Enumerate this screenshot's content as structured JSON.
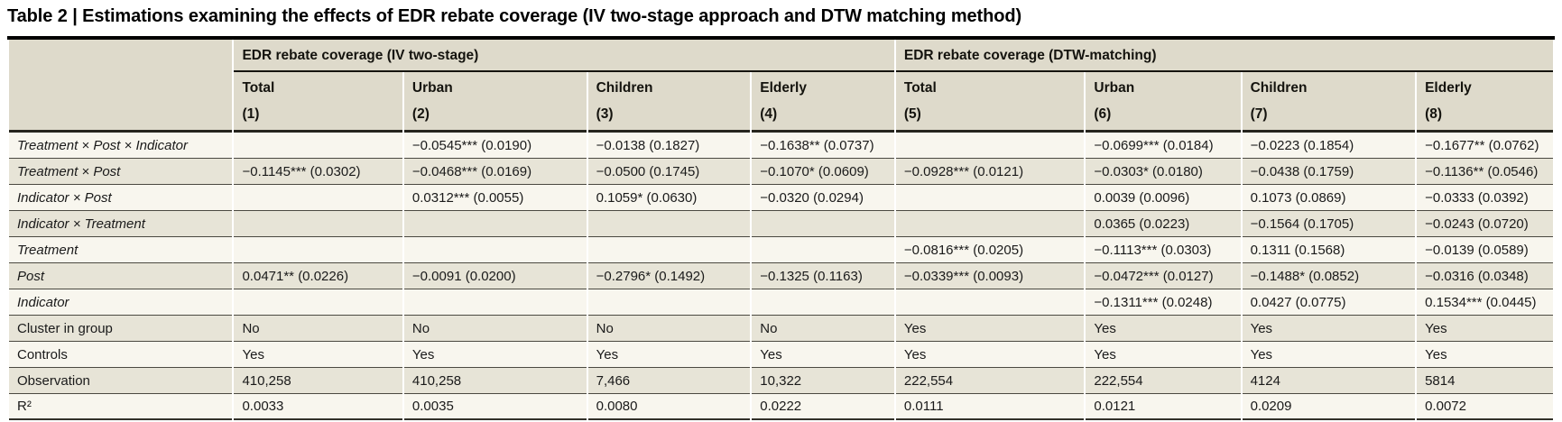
{
  "title": "Table 2 | Estimations examining the effects of EDR rebate coverage (IV two-stage approach and DTW matching method)",
  "palette": {
    "header_bg": "#dedacb",
    "row_light_bg": "#f8f6ee",
    "row_dark_bg": "#e7e4d7",
    "rule_dark": "#000000",
    "rule_row": "#4b4941"
  },
  "table": {
    "groups": [
      {
        "label": "EDR rebate coverage (IV two-stage)",
        "span": 4
      },
      {
        "label": "EDR rebate coverage (DTW-matching)",
        "span": 4
      }
    ],
    "columns": [
      {
        "name": "Total",
        "number": "(1)"
      },
      {
        "name": "Urban",
        "number": "(2)"
      },
      {
        "name": "Children",
        "number": "(3)"
      },
      {
        "name": "Elderly",
        "number": "(4)"
      },
      {
        "name": "Total",
        "number": "(5)"
      },
      {
        "name": "Urban",
        "number": "(6)"
      },
      {
        "name": "Children",
        "number": "(7)"
      },
      {
        "name": "Elderly",
        "number": "(8)"
      }
    ],
    "rows": [
      {
        "label": "Treatment × Post × Indicator",
        "italic": true,
        "values": [
          "",
          "−0.0545*** (0.0190)",
          "−0.0138 (0.1827)",
          "−0.1638** (0.0737)",
          "",
          "−0.0699*** (0.0184)",
          "−0.0223 (0.1854)",
          "−0.1677** (0.0762)"
        ]
      },
      {
        "label": "Treatment × Post",
        "italic": true,
        "values": [
          "−0.1145*** (0.0302)",
          "−0.0468*** (0.0169)",
          "−0.0500 (0.1745)",
          "−0.1070* (0.0609)",
          "−0.0928*** (0.0121)",
          "−0.0303* (0.0180)",
          "−0.0438 (0.1759)",
          "−0.1136** (0.0546)"
        ]
      },
      {
        "label": "Indicator × Post",
        "italic": true,
        "values": [
          "",
          "0.0312*** (0.0055)",
          "0.1059* (0.0630)",
          "−0.0320 (0.0294)",
          "",
          "0.0039 (0.0096)",
          "0.1073 (0.0869)",
          "−0.0333 (0.0392)"
        ]
      },
      {
        "label": "Indicator × Treatment",
        "italic": true,
        "values": [
          "",
          "",
          "",
          "",
          "",
          "0.0365 (0.0223)",
          "−0.1564 (0.1705)",
          "−0.0243 (0.0720)"
        ]
      },
      {
        "label": "Treatment",
        "italic": true,
        "values": [
          "",
          "",
          "",
          "",
          "−0.0816*** (0.0205)",
          "−0.1113*** (0.0303)",
          "0.1311 (0.1568)",
          "−0.0139 (0.0589)"
        ]
      },
      {
        "label": "Post",
        "italic": true,
        "values": [
          "0.0471** (0.0226)",
          "−0.0091 (0.0200)",
          "−0.2796* (0.1492)",
          "−0.1325 (0.1163)",
          "−0.0339*** (0.0093)",
          "−0.0472*** (0.0127)",
          "−0.1488* (0.0852)",
          "−0.0316 (0.0348)"
        ]
      },
      {
        "label": "Indicator",
        "italic": true,
        "values": [
          "",
          "",
          "",
          "",
          "",
          "−0.1311*** (0.0248)",
          "0.0427 (0.0775)",
          "0.1534*** (0.0445)"
        ]
      },
      {
        "label": "Cluster in group",
        "italic": false,
        "values": [
          "No",
          "No",
          "No",
          "No",
          "Yes",
          "Yes",
          "Yes",
          "Yes"
        ]
      },
      {
        "label": "Controls",
        "italic": false,
        "values": [
          "Yes",
          "Yes",
          "Yes",
          "Yes",
          "Yes",
          "Yes",
          "Yes",
          "Yes"
        ]
      },
      {
        "label": "Observation",
        "italic": false,
        "values": [
          "410,258",
          "410,258",
          "7,466",
          "10,322",
          "222,554",
          "222,554",
          "4124",
          "5814"
        ]
      },
      {
        "label": "R²",
        "italic": false,
        "values": [
          "0.0033",
          "0.0035",
          "0.0080",
          "0.0222",
          "0.0111",
          "0.0121",
          "0.0209",
          "0.0072"
        ]
      }
    ]
  }
}
